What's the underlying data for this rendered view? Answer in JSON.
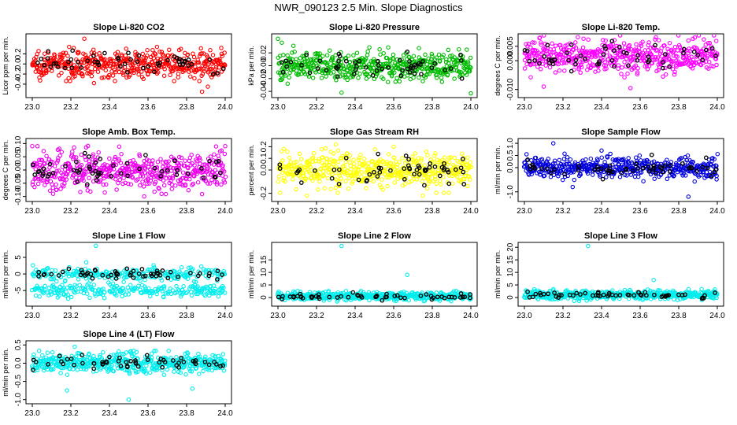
{
  "figure_title": "NWR_090123  2.5 Min. Slope Diagnostics",
  "chart_data": [
    {
      "type": "scatter",
      "title": "Slope Li-820 CO2",
      "ylabel": "Licor ppm per min.",
      "xlim": [
        23.0,
        24.0
      ],
      "ylim": [
        -0.62,
        0.55
      ],
      "color": "#ff0000",
      "spread": 0.13,
      "center": 0.0,
      "xticks": [
        "23.0",
        "23.2",
        "23.4",
        "23.6",
        "23.8",
        "24.0"
      ],
      "yticks": [
        {
          "v": -0.4,
          "label": "-0.4"
        },
        {
          "v": -0.2,
          "label": "-0.2"
        },
        {
          "v": 0.0,
          "label": "0.0"
        },
        {
          "v": 0.2,
          "label": "0.2"
        }
      ],
      "outliers": [
        [
          23.27,
          0.5
        ],
        [
          23.88,
          -0.55
        ],
        [
          23.91,
          -0.45
        ],
        [
          23.32,
          -0.38
        ]
      ]
    },
    {
      "type": "scatter",
      "title": "Slope Li-820 Pressure",
      "ylabel": "kPa per min.",
      "xlim": [
        23.0,
        24.0
      ],
      "ylim": [
        -0.046,
        0.046
      ],
      "color": "#00bb00",
      "spread": 0.011,
      "center": 0.0,
      "xticks": [
        "23.0",
        "23.2",
        "23.4",
        "23.6",
        "23.8",
        "24.0"
      ],
      "yticks": [
        {
          "v": -0.04,
          "label": "-0.04"
        },
        {
          "v": -0.02,
          "label": "-0.02"
        },
        {
          "v": 0.0,
          "label": "0.00"
        },
        {
          "v": 0.02,
          "label": "0.02"
        }
      ],
      "outliers": [
        [
          23.0,
          0.042
        ],
        [
          23.02,
          0.036
        ],
        [
          23.08,
          0.031
        ],
        [
          23.33,
          -0.042
        ],
        [
          24.0,
          -0.043
        ],
        [
          23.05,
          -0.028
        ]
      ]
    },
    {
      "type": "scatter",
      "title": "Slope Li-820 Temp.",
      "ylabel": "degrees C per min.",
      "xlim": [
        23.0,
        24.0
      ],
      "ylim": [
        -0.012,
        0.0085
      ],
      "color": "#ff00ff",
      "spread": 0.0028,
      "center": 0.0015,
      "xticks": [
        "23.0",
        "23.2",
        "23.4",
        "23.6",
        "23.8",
        "24.0"
      ],
      "yticks": [
        {
          "v": -0.01,
          "label": "-0.010"
        },
        {
          "v": 0.0,
          "label": "0.000"
        },
        {
          "v": 0.005,
          "label": "0.005"
        }
      ],
      "outliers": [
        [
          23.08,
          0.008
        ],
        [
          23.85,
          0.007
        ],
        [
          23.1,
          -0.009
        ],
        [
          23.55,
          -0.0095
        ]
      ]
    },
    {
      "type": "scatter",
      "title": "Slope Amb. Box Temp.",
      "ylabel": "degrees C per min.",
      "xlim": [
        23.0,
        24.0
      ],
      "ylim": [
        -0.11,
        0.11
      ],
      "color": "#ee00ee",
      "spread": 0.035,
      "center": 0.0,
      "xticks": [
        "23.0",
        "23.2",
        "23.4",
        "23.6",
        "23.8",
        "24.0"
      ],
      "yticks": [
        {
          "v": -0.1,
          "label": "-0.10"
        },
        {
          "v": -0.05,
          "label": "-0.05"
        },
        {
          "v": 0.0,
          "label": "0.00"
        },
        {
          "v": 0.05,
          "label": "0.05"
        },
        {
          "v": 0.1,
          "label": "0.10"
        }
      ],
      "outliers": [
        [
          23.58,
          -0.1
        ],
        [
          23.67,
          -0.09
        ],
        [
          24.0,
          0.09
        ],
        [
          23.0,
          0.09
        ]
      ]
    },
    {
      "type": "scatter",
      "title": "Slope Gas Stream RH",
      "ylabel": "percent per min.",
      "xlim": [
        23.0,
        24.0
      ],
      "ylim": [
        -0.25,
        0.25
      ],
      "color": "#ffff00",
      "spread": 0.075,
      "center": 0.0,
      "xticks": [
        "23.0",
        "23.2",
        "23.4",
        "23.6",
        "23.8",
        "24.0"
      ],
      "yticks": [
        {
          "v": -0.2,
          "label": "-0.2"
        },
        {
          "v": 0.0,
          "label": "0.0"
        },
        {
          "v": 0.1,
          "label": "0.1"
        },
        {
          "v": 0.2,
          "label": "0.2"
        }
      ],
      "outliers": [
        [
          23.3,
          0.22
        ],
        [
          23.15,
          -0.22
        ],
        [
          23.6,
          0.2
        ],
        [
          23.75,
          -0.22
        ]
      ]
    },
    {
      "type": "scatter",
      "title": "Slope Sample Flow",
      "ylabel": "ml/min per min.",
      "xlim": [
        23.0,
        24.0
      ],
      "ylim": [
        -1.3,
        1.1
      ],
      "color": "#0000dd",
      "spread": 0.22,
      "center": 0.0,
      "xticks": [
        "23.0",
        "23.2",
        "23.4",
        "23.6",
        "23.8",
        "24.0"
      ],
      "yticks": [
        {
          "v": -1.0,
          "label": "-1.0"
        },
        {
          "v": 0.0,
          "label": "0.0"
        },
        {
          "v": 0.5,
          "label": "0.5"
        },
        {
          "v": 1.0,
          "label": "1.0"
        }
      ],
      "outliers": [
        [
          23.15,
          1.0
        ],
        [
          23.85,
          -1.2
        ],
        [
          23.4,
          0.7
        ],
        [
          23.25,
          -0.8
        ]
      ]
    },
    {
      "type": "scatter",
      "title": "Slope Line 1 Flow",
      "ylabel": "ml/min per min.",
      "xlim": [
        23.0,
        24.0
      ],
      "ylim": [
        -9,
        8.8
      ],
      "color": "#00eeee",
      "spread": 1.0,
      "center": -1.5,
      "bimodal": [
        0.0,
        -5.0
      ],
      "xticks": [
        "23.0",
        "23.2",
        "23.4",
        "23.6",
        "23.8",
        "24.0"
      ],
      "yticks": [
        {
          "v": -5,
          "label": "-5"
        },
        {
          "v": 0,
          "label": "0"
        },
        {
          "v": 5,
          "label": "5"
        }
      ],
      "outliers": [
        [
          23.33,
          8.5
        ],
        [
          23.28,
          3.5
        ]
      ]
    },
    {
      "type": "scatter",
      "title": "Slope Line 2 Flow",
      "ylabel": "ml/min per min.",
      "xlim": [
        23.0,
        24.0
      ],
      "ylim": [
        -2.5,
        21
      ],
      "color": "#00eeee",
      "spread": 0.8,
      "center": 0.5,
      "xticks": [
        "23.0",
        "23.2",
        "23.4",
        "23.6",
        "23.8",
        "24.0"
      ],
      "yticks": [
        {
          "v": 0,
          "label": "0"
        },
        {
          "v": 5,
          "label": "5"
        },
        {
          "v": 10,
          "label": "10"
        },
        {
          "v": 15,
          "label": "15"
        }
      ],
      "outliers": [
        [
          23.33,
          20.5
        ],
        [
          23.67,
          9.0
        ]
      ]
    },
    {
      "type": "scatter",
      "title": "Slope Line 3 Flow",
      "ylabel": "ml/min per min.",
      "xlim": [
        23.0,
        24.0
      ],
      "ylim": [
        -2.5,
        21
      ],
      "color": "#00eeee",
      "spread": 0.9,
      "center": 1.0,
      "xticks": [
        "23.0",
        "23.2",
        "23.4",
        "23.6",
        "23.8",
        "24.0"
      ],
      "yticks": [
        {
          "v": 0,
          "label": "0"
        },
        {
          "v": 5,
          "label": "5"
        },
        {
          "v": 10,
          "label": "10"
        },
        {
          "v": 15,
          "label": "15"
        },
        {
          "v": 20,
          "label": "20"
        }
      ],
      "outliers": [
        [
          23.33,
          20.5
        ],
        [
          23.67,
          7.0
        ]
      ]
    },
    {
      "type": "scatter",
      "title": "Slope Line 4 (LT) Flow",
      "ylabel": "ml/min per min.",
      "xlim": [
        23.0,
        24.0
      ],
      "ylim": [
        -1.05,
        0.55
      ],
      "color": "#00eeee",
      "spread": 0.13,
      "center": 0.0,
      "xticks": [
        "23.0",
        "23.2",
        "23.4",
        "23.6",
        "23.8",
        "24.0"
      ],
      "yticks": [
        {
          "v": -1.0,
          "label": "-1.0"
        },
        {
          "v": -0.5,
          "label": "-0.5"
        },
        {
          "v": 0.0,
          "label": "0.0"
        },
        {
          "v": 0.5,
          "label": "0.5"
        }
      ],
      "outliers": [
        [
          23.18,
          -0.75
        ],
        [
          23.5,
          -1.0
        ],
        [
          23.83,
          -0.7
        ],
        [
          23.22,
          0.45
        ]
      ]
    }
  ]
}
